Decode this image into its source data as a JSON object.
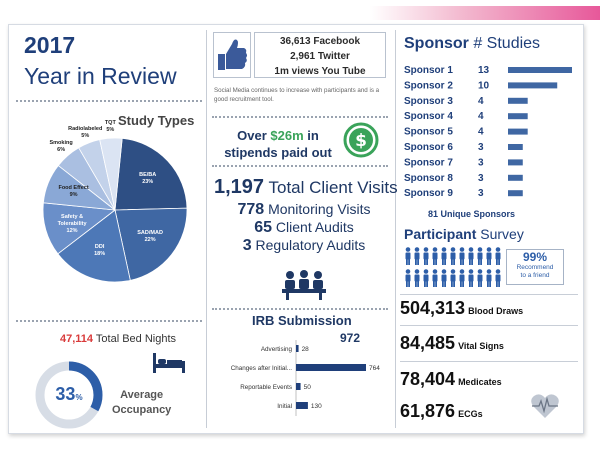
{
  "header": {
    "year": "2017",
    "subtitle": "Year in Review"
  },
  "study_types": {
    "title": "Study Types",
    "slices": [
      {
        "label": "BE/BA",
        "pct": "23%",
        "value": 23,
        "color": "#2e4f84",
        "text": "light"
      },
      {
        "label": "SAD/MAD",
        "pct": "22%",
        "value": 22,
        "color": "#3f67a3",
        "text": "light"
      },
      {
        "label": "DDI",
        "pct": "18%",
        "value": 18,
        "color": "#4d78b7",
        "text": "light"
      },
      {
        "label": "Safety & Tolerability",
        "pct": "12%",
        "value": 12,
        "color": "#6a8fc9",
        "text": "light"
      },
      {
        "label": "Food Effect",
        "pct": "9%",
        "value": 9,
        "color": "#8aa8d6",
        "text": "dark"
      },
      {
        "label": "Smoking",
        "pct": "6%",
        "value": 6,
        "color": "#aabfe1",
        "text": "dark"
      },
      {
        "label": "Radiolabeled",
        "pct": "5%",
        "value": 5,
        "color": "#c3d2ea",
        "text": "dark"
      },
      {
        "label": "TQT",
        "pct": "5%",
        "value": 5,
        "color": "#dbe4f3",
        "text": "dark"
      }
    ]
  },
  "bed_nights": {
    "value": "47,114",
    "label": "Total Bed Nights"
  },
  "occupancy": {
    "value": "33",
    "unit": "%",
    "fraction": 0.33,
    "label_line1": "Average",
    "label_line2": "Occupancy"
  },
  "social": {
    "facebook": "36,613 Facebook",
    "twitter": "2,961 Twitter",
    "youtube": "1m views You Tube",
    "note": "Social Media continues to increase with participants and is a good recruitment tool."
  },
  "stipends": {
    "prefix": "Over ",
    "amount": "$26m",
    "mid": " in",
    "suffix": "stipends paid out"
  },
  "visits": [
    {
      "value": "1,197",
      "label": "Total Client Visits"
    },
    {
      "value": "778",
      "label": "Monitoring Visits"
    },
    {
      "value": "65",
      "label": "Client Audits"
    },
    {
      "value": "3",
      "label": "Regulatory Audits"
    }
  ],
  "irb": {
    "title": "IRB Submission",
    "total": "972",
    "max": 764,
    "bars": [
      {
        "label": "Advertising",
        "value": 28
      },
      {
        "label": "Changes after Initial...",
        "value": 764
      },
      {
        "label": "Reportable Events",
        "value": 50
      },
      {
        "label": "Initial",
        "value": 130
      }
    ]
  },
  "sponsors": {
    "title_bold": "Sponsor",
    "title_rest": " # Studies",
    "max": 13,
    "items": [
      {
        "label": "Sponsor 1",
        "value": 13
      },
      {
        "label": "Sponsor 2",
        "value": 10
      },
      {
        "label": "Sponsor 3",
        "value": 4
      },
      {
        "label": "Sponsor 4",
        "value": 4
      },
      {
        "label": "Sponsor 5",
        "value": 4
      },
      {
        "label": "Sponsor 6",
        "value": 3
      },
      {
        "label": "Sponsor 7",
        "value": 3
      },
      {
        "label": "Sponsor 8",
        "value": 3
      },
      {
        "label": "Sponsor 9",
        "value": 3
      }
    ],
    "unique": "81 Unique Sponsors"
  },
  "participant": {
    "title_bold": "Participant",
    "title_rest": " Survey",
    "recommend_pct": "99%",
    "recommend_line1": "Recommend",
    "recommend_line2": "to a friend"
  },
  "metrics": [
    {
      "value": "504,313",
      "label": "Blood Draws"
    },
    {
      "value": "84,485",
      "label": "Vital Signs"
    },
    {
      "value": "78,404",
      "label": "Medicates"
    },
    {
      "value": "61,876",
      "label": "ECGs"
    }
  ],
  "colors": {
    "navy": "#1f3864",
    "accent": "#2d5ea8",
    "green": "#3aa35a",
    "red": "#d93b3b",
    "bar": "#3f67a3"
  }
}
